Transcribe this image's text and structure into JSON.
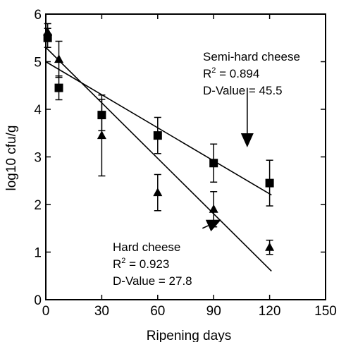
{
  "chart_data": {
    "type": "scatter",
    "xlabel": "Ripening days",
    "ylabel": "log10 cfu/g",
    "xlim": [
      0,
      150
    ],
    "ylim": [
      0,
      6
    ],
    "x_ticks": [
      0,
      30,
      60,
      90,
      120,
      150
    ],
    "y_ticks": [
      0,
      1,
      2,
      3,
      4,
      5,
      6
    ],
    "grid": false,
    "series": [
      {
        "marker": "square",
        "points": [
          {
            "x": 1,
            "y": 5.5,
            "err": 0.2
          },
          {
            "x": 7,
            "y": 4.45,
            "err": 0.25
          },
          {
            "x": 30,
            "y": 3.88,
            "err": 0.33
          },
          {
            "x": 60,
            "y": 3.45,
            "err": 0.38
          },
          {
            "x": 90,
            "y": 2.87,
            "err": 0.4
          },
          {
            "x": 120,
            "y": 2.45,
            "err": 0.48
          }
        ],
        "fit": {
          "x": [
            0,
            121
          ],
          "y": [
            5.0,
            2.2
          ]
        },
        "annotation": {
          "label": "Semi-hard cheese",
          "r2_prefix": "R",
          "r2_sup": "2",
          "r2_value": " = 0.894",
          "dvalue": "D-Value = 45.5"
        }
      },
      {
        "marker": "triangle",
        "points": [
          {
            "x": 1,
            "y": 5.62,
            "err": 0.18
          },
          {
            "x": 7,
            "y": 5.05,
            "err": 0.38
          },
          {
            "x": 30,
            "y": 3.45,
            "err": 0.85
          },
          {
            "x": 60,
            "y": 2.25,
            "err": 0.38
          },
          {
            "x": 90,
            "y": 1.9,
            "err": 0.37
          },
          {
            "x": 120,
            "y": 1.1,
            "err": 0.15
          }
        ],
        "fit": {
          "x": [
            0,
            121
          ],
          "y": [
            5.3,
            0.6
          ]
        },
        "annotation": {
          "label": "Hard cheese",
          "r2_prefix": "R",
          "r2_sup": "2",
          "r2_value": " = 0.923",
          "dvalue": "D-Value = 27.8"
        }
      }
    ],
    "arrows": [
      {
        "from": [
          108,
          4.45
        ],
        "to": [
          108,
          3.2
        ]
      },
      {
        "from": [
          84,
          1.5
        ],
        "to": [
          94,
          1.68
        ]
      }
    ]
  }
}
